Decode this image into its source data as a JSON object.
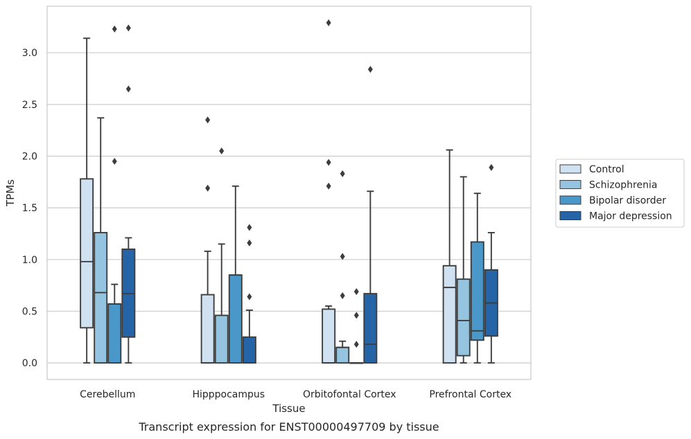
{
  "caption": "Transcript expression for ENST00000497709 by tissue",
  "chart_data": {
    "type": "box",
    "xlabel": "Tissue",
    "ylabel": "TPMs",
    "ylim": [
      -0.16,
      3.45
    ],
    "yticks": [
      0.0,
      0.5,
      1.0,
      1.5,
      2.0,
      2.5,
      3.0
    ],
    "ytick_labels": [
      "0.0",
      "0.5",
      "1.0",
      "1.5",
      "2.0",
      "2.5",
      "3.0"
    ],
    "grid": "horizontal",
    "legend_position": "right",
    "categories": [
      "Cerebellum",
      "Hipppocampus",
      "Orbitofontal Cortex",
      "Prefrontal Cortex"
    ],
    "series": [
      {
        "name": "Control",
        "color": "#d0e1f2",
        "boxes": [
          {
            "whislo": 0.0,
            "q1": 0.34,
            "med": 0.98,
            "q3": 1.78,
            "whishi": 3.14,
            "fliers": []
          },
          {
            "whislo": 0.0,
            "q1": 0.0,
            "med": 0.0,
            "q3": 0.66,
            "whishi": 1.08,
            "fliers": [
              1.69,
              2.35
            ]
          },
          {
            "whislo": 0.0,
            "q1": 0.0,
            "med": 0.0,
            "q3": 0.52,
            "whishi": 0.55,
            "fliers": [
              1.71,
              1.94,
              3.29
            ]
          },
          {
            "whislo": 0.0,
            "q1": 0.0,
            "med": 0.73,
            "q3": 0.94,
            "whishi": 2.06,
            "fliers": []
          }
        ]
      },
      {
        "name": "Schizophrenia",
        "color": "#94c4df",
        "boxes": [
          {
            "whislo": 0.0,
            "q1": 0.0,
            "med": 0.68,
            "q3": 1.26,
            "whishi": 2.37,
            "fliers": []
          },
          {
            "whislo": 0.0,
            "q1": 0.0,
            "med": 0.46,
            "q3": 0.46,
            "whishi": 1.15,
            "fliers": [
              2.05
            ]
          },
          {
            "whislo": 0.0,
            "q1": 0.0,
            "med": 0.15,
            "q3": 0.15,
            "whishi": 0.21,
            "fliers": [
              0.65,
              1.03,
              1.83
            ]
          },
          {
            "whislo": 0.0,
            "q1": 0.07,
            "med": 0.41,
            "q3": 0.81,
            "whishi": 1.8,
            "fliers": []
          }
        ]
      },
      {
        "name": "Bipolar disorder",
        "color": "#4a98c9",
        "boxes": [
          {
            "whislo": 0.0,
            "q1": 0.0,
            "med": 0.57,
            "q3": 0.57,
            "whishi": 0.76,
            "fliers": [
              1.95,
              3.23
            ]
          },
          {
            "whislo": 0.0,
            "q1": 0.0,
            "med": 0.85,
            "q3": 0.85,
            "whishi": 1.71,
            "fliers": []
          },
          {
            "whislo": 0.0,
            "q1": 0.0,
            "med": 0.0,
            "q3": 0.0,
            "whishi": 0.0,
            "fliers": [
              0.18,
              0.46,
              0.69
            ]
          },
          {
            "whislo": 0.0,
            "q1": 0.22,
            "med": 0.31,
            "q3": 1.17,
            "whishi": 1.64,
            "fliers": []
          }
        ]
      },
      {
        "name": "Major depression",
        "color": "#2565a7",
        "boxes": [
          {
            "whislo": 0.0,
            "q1": 0.25,
            "med": 0.67,
            "q3": 1.1,
            "whishi": 1.21,
            "fliers": [
              2.65,
              3.24
            ]
          },
          {
            "whislo": 0.0,
            "q1": 0.0,
            "med": 0.0,
            "q3": 0.25,
            "whishi": 0.51,
            "fliers": [
              0.64,
              1.16,
              1.31
            ]
          },
          {
            "whislo": 0.0,
            "q1": 0.0,
            "med": 0.18,
            "q3": 0.67,
            "whishi": 1.66,
            "fliers": [
              2.84
            ]
          },
          {
            "whislo": 0.0,
            "q1": 0.26,
            "med": 0.58,
            "q3": 0.9,
            "whishi": 1.26,
            "fliers": [
              1.89
            ]
          }
        ]
      }
    ]
  }
}
